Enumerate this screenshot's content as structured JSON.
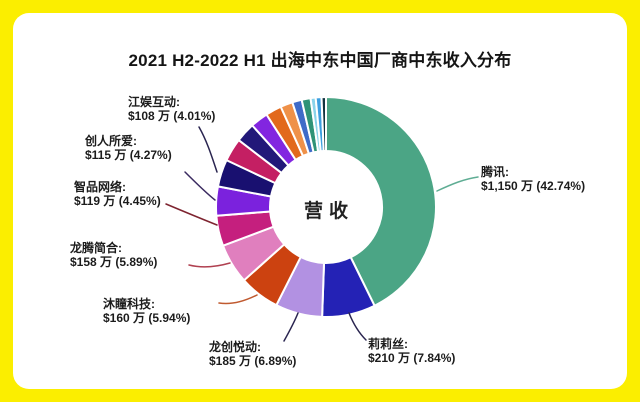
{
  "frame": {
    "background_color": "#FBEE00",
    "card_color": "#FFFFFF"
  },
  "title": "2021 H2-2022 H1 出海中东中国厂商中东收入分布",
  "chart_data": {
    "type": "pie",
    "donut": true,
    "title": "2021 H2-2022 H1 出海中东中国厂商中东收入分布",
    "center_label": "营收",
    "unit": "$ 万",
    "start_angle_deg": 0,
    "direction": "clockwise",
    "slices": [
      {
        "id": "tencent",
        "label": "腾讯:",
        "value_label": "$1,150 万 (42.74%)",
        "value_wan_usd": 1150,
        "percent": 42.74,
        "color": "#4BA585",
        "line_color": "#5FAD94"
      },
      {
        "id": "lilith",
        "label": "莉莉丝:",
        "value_label": "$210 万 (7.84%)",
        "value_wan_usd": 210,
        "percent": 7.84,
        "color": "#2422B5",
        "line_color": "#2A2550"
      },
      {
        "id": "longchuang-yuedong",
        "label": "龙创悦动:",
        "value_label": "$185 万 (6.89%)",
        "value_wan_usd": 185,
        "percent": 6.89,
        "color": "#B291E2",
        "line_color": "#2A2550"
      },
      {
        "id": "mutong-keji",
        "label": "沐瞳科技:",
        "value_label": "$160 万 (5.94%)",
        "value_wan_usd": 160,
        "percent": 5.94,
        "color": "#CC4210",
        "line_color": "#C05A30"
      },
      {
        "id": "longteng-jianhe",
        "label": "龙腾简合:",
        "value_label": "$158 万 (5.89%)",
        "value_wan_usd": 158,
        "percent": 5.89,
        "color": "#E07FBE",
        "line_color": "#B04050"
      },
      {
        "id": "zhipin-wangluo",
        "label": "智品网络:",
        "value_label": "$119 万 (4.45%)",
        "value_wan_usd": 119,
        "percent": 4.45,
        "color": "#C51F7E",
        "line_color": "#7E2430"
      },
      {
        "id": "chuangren-suoai",
        "label": "创人所爱:",
        "value_label": "$115 万 (4.27%)",
        "value_wan_usd": 115,
        "percent": 4.27,
        "color": "#7B22DD",
        "line_color": "#3A2A60"
      },
      {
        "id": "jiangyu-hudong",
        "label": "江娱互动:",
        "value_label": "$108 万 (4.01%)",
        "value_wan_usd": 108,
        "percent": 4.01,
        "color": "#191070",
        "line_color": "#2A2550"
      },
      {
        "id": "other-1",
        "label": "",
        "percent": 3.4,
        "color": "#C41F63"
      },
      {
        "id": "other-2",
        "label": "",
        "percent": 2.9,
        "color": "#221879"
      },
      {
        "id": "other-3",
        "label": "",
        "percent": 2.6,
        "color": "#8226E0"
      },
      {
        "id": "other-4",
        "label": "",
        "percent": 2.35,
        "color": "#E2691C"
      },
      {
        "id": "other-5",
        "label": "",
        "percent": 1.8,
        "color": "#EF9149"
      },
      {
        "id": "other-6",
        "label": "",
        "percent": 1.4,
        "color": "#3F6BC8"
      },
      {
        "id": "other-7",
        "label": "",
        "percent": 1.3,
        "color": "#2F9377"
      },
      {
        "id": "other-8",
        "label": "",
        "percent": 0.75,
        "color": "#8AD3EA"
      },
      {
        "id": "other-9",
        "label": "",
        "percent": 0.85,
        "color": "#3D9FE0"
      },
      {
        "id": "other-10",
        "label": "",
        "percent": 0.65,
        "color": "#12333F"
      }
    ]
  }
}
